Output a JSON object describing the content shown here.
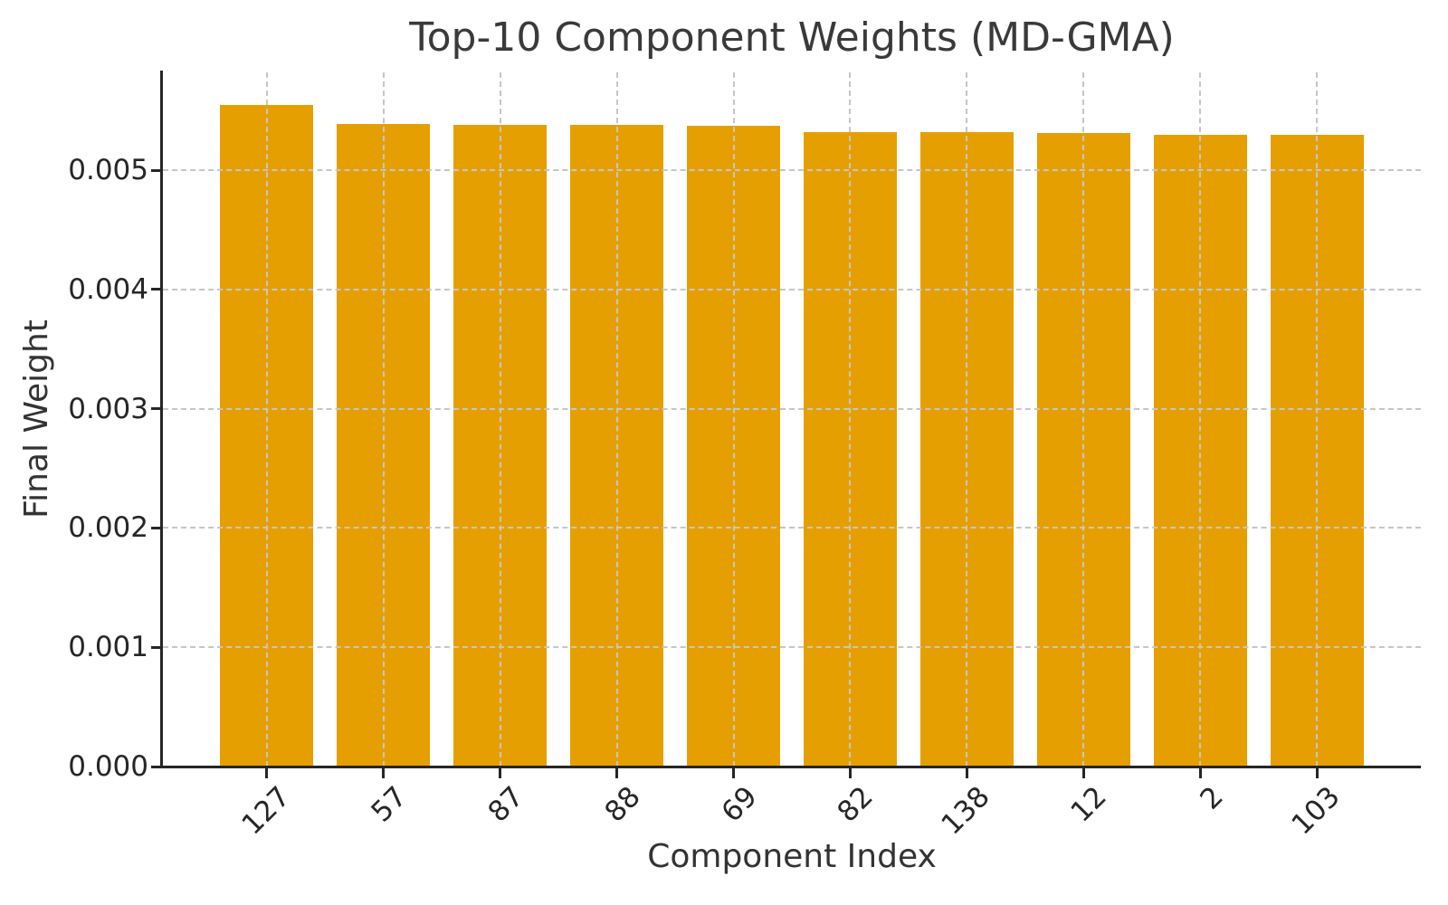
{
  "chart_data": {
    "type": "bar",
    "title": "Top-10 Component Weights (MD-GMA)",
    "xlabel": "Component Index",
    "ylabel": "Final Weight",
    "categories": [
      "127",
      "57",
      "87",
      "88",
      "69",
      "82",
      "138",
      "12",
      "2",
      "103"
    ],
    "values": [
      0.00555,
      0.00539,
      0.00538,
      0.00538,
      0.00537,
      0.00532,
      0.00532,
      0.00531,
      0.0053,
      0.0053
    ],
    "yticks": [
      0.0,
      0.001,
      0.002,
      0.003,
      0.004,
      0.005
    ],
    "ytick_labels": [
      "0.000",
      "0.001",
      "0.002",
      "0.003",
      "0.004",
      "0.005"
    ],
    "ylim": [
      0,
      0.00582
    ],
    "bar_width_fraction": 0.8,
    "x_margin_units": 0.89,
    "grid": true,
    "legend": null,
    "colors": {
      "bar": "#E69F00",
      "grid": "#c6c6c6",
      "axis": "#262626",
      "title_text": "#3a3a3a",
      "label_text": "#333333"
    }
  }
}
